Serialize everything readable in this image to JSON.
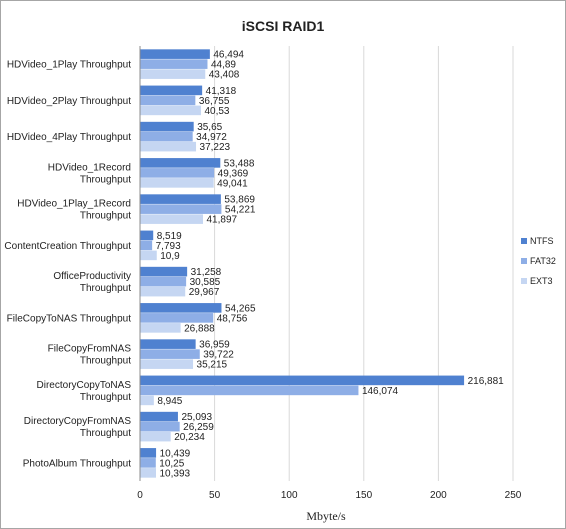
{
  "chart_data": {
    "type": "bar",
    "orientation": "horizontal",
    "title": "iSCSI RAID1",
    "xlabel": "Mbyte/s",
    "ylabel": "",
    "xlim": [
      0,
      250
    ],
    "x_ticks": [
      "0",
      "50",
      "100",
      "150",
      "200",
      "250"
    ],
    "grid": true,
    "legend_position": "right",
    "categories": [
      "HDVideo_1Play Throughput",
      "HDVideo_2Play Throughput",
      "HDVideo_4Play Throughput",
      "HDVideo_1Record Throughput",
      "HDVideo_1Play_1Record Throughput",
      "ContentCreation Throughput",
      "OfficeProductivity Throughput",
      "FileCopyToNAS Throughput",
      "FileCopyFromNAS Throughput",
      "DirectoryCopyToNAS Throughput",
      "DirectoryCopyFromNAS Throughput",
      "PhotoAlbum Throughput"
    ],
    "category_lines": [
      [
        "HDVideo_1Play Throughput"
      ],
      [
        "HDVideo_2Play Throughput"
      ],
      [
        "HDVideo_4Play Throughput"
      ],
      [
        "HDVideo_1Record",
        "Throughput"
      ],
      [
        "HDVideo_1Play_1Record",
        "Throughput"
      ],
      [
        "ContentCreation Throughput"
      ],
      [
        "OfficeProductivity",
        "Throughput"
      ],
      [
        "FileCopyToNAS Throughput"
      ],
      [
        "FileCopyFromNAS",
        "Throughput"
      ],
      [
        "DirectoryCopyToNAS",
        "Throughput"
      ],
      [
        "DirectoryCopyFromNAS",
        "Throughput"
      ],
      [
        "PhotoAlbum Throughput"
      ]
    ],
    "series": [
      {
        "name": "NTFS",
        "color": "#4f81d0",
        "values": [
          46.494,
          41.318,
          35.65,
          53.488,
          53.869,
          8.519,
          31.258,
          54.265,
          36.959,
          216.881,
          25.093,
          10.439
        ],
        "labels": [
          "46,494",
          "41,318",
          "35,65",
          "53,488",
          "53,869",
          "8,519",
          "31,258",
          "54,265",
          "36,959",
          "216,881",
          "25,093",
          "10,439"
        ]
      },
      {
        "name": "FAT32",
        "color": "#8eaee6",
        "values": [
          44.89,
          36.755,
          34.972,
          49.369,
          54.221,
          7.793,
          30.585,
          48.756,
          39.722,
          146.074,
          26.259,
          10.25
        ],
        "labels": [
          "44,89",
          "36,755",
          "34,972",
          "49,369",
          "54,221",
          "7,793",
          "30,585",
          "48,756",
          "39,722",
          "146,074",
          "26,259",
          "10,25"
        ]
      },
      {
        "name": "EXT3",
        "color": "#c5d6f2",
        "values": [
          43.408,
          40.53,
          37.223,
          49.041,
          41.897,
          10.9,
          29.967,
          26.888,
          35.215,
          8.945,
          20.234,
          10.393
        ],
        "labels": [
          "43,408",
          "40,53",
          "37,223",
          "49,041",
          "41,897",
          "10,9",
          "29,967",
          "26,888",
          "35,215",
          "8,945",
          "20,234",
          "10,393"
        ]
      }
    ]
  }
}
